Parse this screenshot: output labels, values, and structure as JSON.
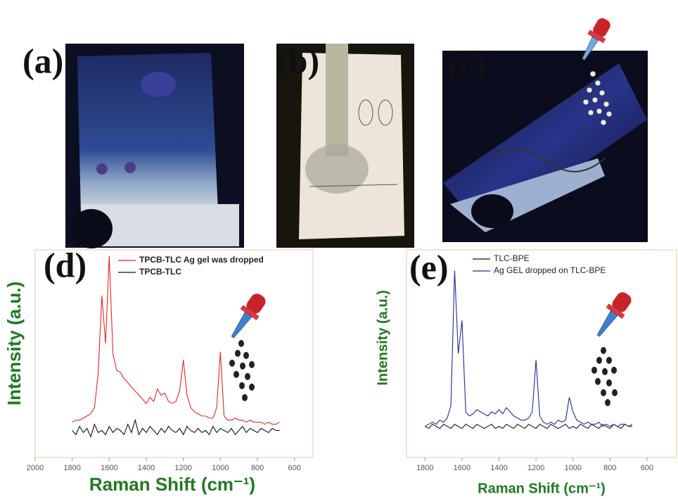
{
  "panels": {
    "a": "(a)",
    "b": "(b)",
    "c": "(c)"
  },
  "chart_data": [
    {
      "type": "line",
      "panel": "(d)",
      "x_label": "Raman Shift (cm⁻¹)",
      "y_label": "Intensity (a.u.)",
      "xlim": [
        2000,
        500
      ],
      "xticks": [
        2000,
        1800,
        1600,
        1400,
        1200,
        1000,
        800,
        600
      ],
      "ylim": [
        0,
        100
      ],
      "x": [
        1800,
        1780,
        1760,
        1740,
        1720,
        1700,
        1680,
        1660,
        1640,
        1620,
        1600,
        1580,
        1560,
        1540,
        1520,
        1500,
        1480,
        1460,
        1440,
        1420,
        1400,
        1380,
        1360,
        1340,
        1320,
        1300,
        1280,
        1260,
        1240,
        1220,
        1200,
        1180,
        1160,
        1140,
        1120,
        1100,
        1080,
        1060,
        1040,
        1020,
        1000,
        980,
        960,
        940,
        920,
        900,
        880,
        860,
        840,
        820,
        800,
        780,
        760,
        740,
        720,
        700,
        680
      ],
      "series": [
        {
          "name": "TPCB-TLC Ag gel was dropped",
          "color": "#e8261e",
          "values": [
            17,
            18,
            18,
            19,
            20,
            21,
            24,
            40,
            78,
            55,
            97,
            50,
            42,
            41,
            38,
            36,
            34,
            32,
            30,
            28,
            26,
            29,
            27,
            33,
            30,
            31,
            27,
            26,
            27,
            32,
            47,
            30,
            24,
            22,
            21,
            20,
            20,
            19,
            19,
            24,
            51,
            20,
            18,
            18,
            19,
            18,
            18,
            17,
            18,
            17,
            17,
            17,
            16,
            17,
            16,
            16,
            17
          ]
        },
        {
          "name": "TPCB-TLC",
          "color": "#111111",
          "values": [
            13,
            11,
            15,
            12,
            14,
            10,
            16,
            12,
            13,
            11,
            15,
            12,
            14,
            13,
            11,
            16,
            12,
            18,
            11,
            14,
            12,
            15,
            13,
            11,
            14,
            12,
            15,
            13,
            12,
            14,
            11,
            15,
            13,
            12,
            14,
            12,
            13,
            11,
            15,
            12,
            14,
            13,
            12,
            14,
            11,
            13,
            15,
            12,
            14,
            13,
            12,
            14,
            13,
            12,
            14,
            13,
            13
          ]
        }
      ]
    },
    {
      "type": "line",
      "panel": "(e)",
      "x_label": "Raman Shift (cm⁻¹)",
      "y_label": "Intensity (a.u.)",
      "xlim": [
        1900,
        440
      ],
      "xticks": [
        1800,
        1600,
        1400,
        1200,
        1000,
        800,
        600
      ],
      "ylim": [
        0,
        100
      ],
      "x": [
        1800,
        1780,
        1760,
        1740,
        1720,
        1700,
        1680,
        1660,
        1640,
        1620,
        1600,
        1580,
        1560,
        1540,
        1520,
        1500,
        1480,
        1460,
        1440,
        1420,
        1400,
        1380,
        1360,
        1340,
        1320,
        1300,
        1280,
        1260,
        1240,
        1220,
        1200,
        1180,
        1160,
        1140,
        1120,
        1100,
        1080,
        1060,
        1040,
        1020,
        1000,
        980,
        960,
        940,
        920,
        900,
        880,
        860,
        840,
        820,
        800,
        780,
        760,
        740,
        720,
        700,
        680
      ],
      "series": [
        {
          "name": "TLC-BPE",
          "color": "#111111",
          "values": [
            15,
            14,
            16,
            15,
            14,
            16,
            15,
            14,
            16,
            15,
            14,
            16,
            15,
            14,
            16,
            15,
            14,
            15,
            16,
            14,
            15,
            14,
            16,
            15,
            14,
            16,
            15,
            14,
            16,
            15,
            14,
            16,
            15,
            14,
            16,
            15,
            14,
            15,
            16,
            14,
            15,
            14,
            16,
            15,
            14,
            16,
            15,
            14,
            16,
            15,
            14,
            16,
            15,
            14,
            16,
            15,
            15
          ]
        },
        {
          "name": "Ag GEL dropped on TLC-BPE",
          "color": "#1f2a9c",
          "values": [
            15,
            16,
            17,
            16,
            18,
            17,
            19,
            25,
            90,
            50,
            66,
            22,
            20,
            21,
            23,
            22,
            21,
            20,
            22,
            21,
            23,
            21,
            24,
            22,
            20,
            19,
            18,
            18,
            19,
            22,
            47,
            20,
            17,
            16,
            17,
            16,
            18,
            17,
            18,
            29,
            22,
            18,
            17,
            16,
            17,
            16,
            16,
            17,
            15,
            16,
            15,
            16,
            15,
            16,
            16,
            15,
            16
          ]
        }
      ]
    }
  ]
}
